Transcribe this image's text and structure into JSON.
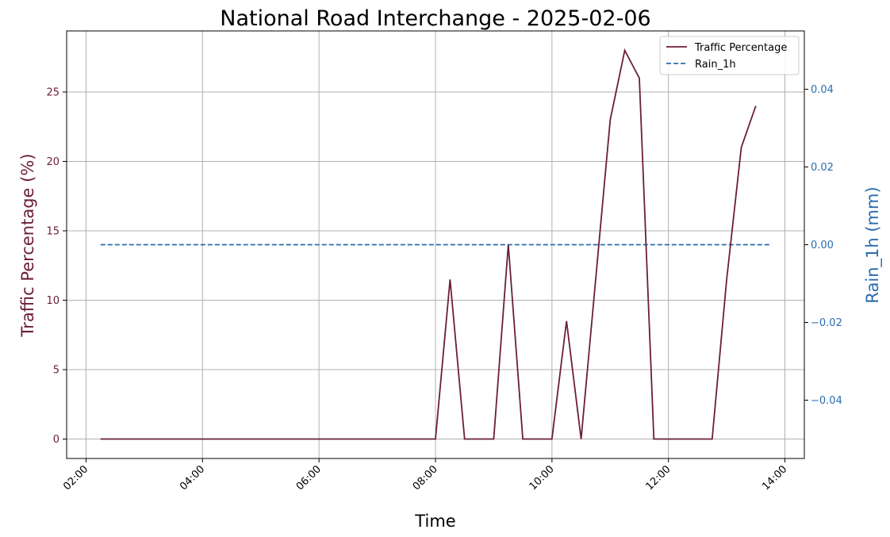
{
  "chart_data": {
    "type": "line",
    "title": "National Road Interchange - 2025-02-06",
    "xlabel": "Time",
    "ylabel": "Traffic Percentage (%)",
    "ylabel_right": "Rain_1h (mm)",
    "grid": true,
    "legend_position": "top-right",
    "x_ticks": [
      "02:00",
      "04:00",
      "06:00",
      "08:00",
      "10:00",
      "12:00",
      "14:00"
    ],
    "y_ticks_left": [
      "0",
      "5",
      "10",
      "15",
      "20",
      "25"
    ],
    "y_ticks_right": [
      "−0.04",
      "−0.02",
      "0.00",
      "0.02",
      "0.04"
    ],
    "xlim": [
      "01:40",
      "14:20"
    ],
    "ylim_left": [
      -1.4,
      29.4
    ],
    "ylim_right": [
      -0.055,
      0.055
    ],
    "colors": {
      "traffic": "#6b1d3c",
      "rain": "#2b6cb0",
      "grid": "#b0b0b0"
    },
    "series": [
      {
        "name": "Traffic Percentage",
        "axis": "left",
        "style": "solid",
        "points": [
          [
            "02:15",
            0
          ],
          [
            "08:00",
            0
          ],
          [
            "08:15",
            11.5
          ],
          [
            "08:30",
            0
          ],
          [
            "09:00",
            0
          ],
          [
            "09:15",
            14
          ],
          [
            "09:30",
            0
          ],
          [
            "10:00",
            0
          ],
          [
            "10:15",
            8.5
          ],
          [
            "10:30",
            0
          ],
          [
            "11:00",
            23
          ],
          [
            "11:15",
            28
          ],
          [
            "11:30",
            26
          ],
          [
            "11:45",
            0
          ],
          [
            "12:45",
            0
          ],
          [
            "13:00",
            11.5
          ],
          [
            "13:15",
            21
          ],
          [
            "13:30",
            24
          ]
        ]
      },
      {
        "name": "Rain_1h",
        "axis": "right",
        "style": "dashed",
        "points": [
          [
            "02:15",
            0
          ],
          [
            "13:45",
            0
          ]
        ]
      }
    ]
  }
}
